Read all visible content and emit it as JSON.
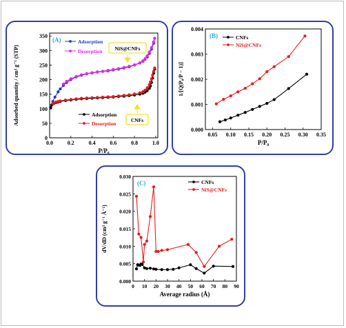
{
  "colors": {
    "frame": "#b9bcc2",
    "panel_border": "#2f3fa6",
    "panel_label": "#2aa8d8",
    "adsorption_ns": "#2233dd",
    "desorption_ns": "#ee22ee",
    "cnf": "#000000",
    "nis": "#e51c1c",
    "callout": "#f2e030"
  },
  "chart_data": [
    {
      "id": "A",
      "type": "line",
      "panel_label": "(A)",
      "xlabel": "P/P₀",
      "ylabel": "Adsorbed quantity / cm³ g⁻¹ (STP)",
      "xlim": [
        0.0,
        1.02
      ],
      "ylim": [
        0,
        360
      ],
      "xticks": [
        0.0,
        0.2,
        0.4,
        0.6,
        0.8,
        1.0
      ],
      "xtick_labels": [
        "0.0",
        "0.2",
        "0.4",
        "0.6",
        "0.8",
        "1.0"
      ],
      "yticks": [
        0,
        50,
        100,
        150,
        200,
        250,
        300,
        350
      ],
      "ytick_labels": [
        "0",
        "50",
        "100",
        "150",
        "200",
        "250",
        "300",
        "350"
      ],
      "callouts": [
        "NiS@CNFs",
        "CNFs"
      ],
      "legends": [
        {
          "position": "top-left",
          "entries": [
            "Adsorption",
            "Desorption"
          ]
        },
        {
          "position": "bottom-center",
          "entries": [
            "Adsorption",
            "Desorption"
          ]
        }
      ],
      "series": [
        {
          "name": "Adsorption",
          "color": "#2233dd",
          "x": [
            0.01,
            0.03,
            0.05,
            0.08,
            0.1,
            0.13,
            0.16,
            0.2,
            0.25,
            0.3,
            0.35,
            0.4,
            0.45,
            0.5,
            0.55,
            0.6,
            0.65,
            0.7,
            0.75,
            0.8,
            0.85,
            0.88,
            0.9,
            0.92,
            0.94,
            0.96,
            0.98,
            0.99
          ],
          "y": [
            102,
            125,
            140,
            158,
            168,
            180,
            190,
            200,
            209,
            215,
            220,
            223,
            226,
            228,
            230,
            233,
            236,
            240,
            244,
            250,
            257,
            263,
            270,
            278,
            290,
            305,
            325,
            342
          ]
        },
        {
          "name": "Desorption",
          "color": "#ee22ee",
          "x": [
            0.99,
            0.98,
            0.96,
            0.94,
            0.92,
            0.9,
            0.88,
            0.85,
            0.8,
            0.75,
            0.7,
            0.65,
            0.6,
            0.55,
            0.5,
            0.45,
            0.4,
            0.35,
            0.3,
            0.25,
            0.2,
            0.16,
            0.13
          ],
          "y": [
            342,
            330,
            310,
            295,
            282,
            272,
            265,
            258,
            251,
            246,
            242,
            238,
            235,
            232,
            229,
            227,
            224,
            221,
            217,
            211,
            203,
            194,
            185
          ]
        },
        {
          "name": "Adsorption",
          "color": "#000000",
          "x": [
            0.01,
            0.02,
            0.04,
            0.06,
            0.08,
            0.1,
            0.15,
            0.2,
            0.25,
            0.3,
            0.35,
            0.4,
            0.45,
            0.5,
            0.55,
            0.6,
            0.65,
            0.7,
            0.75,
            0.8,
            0.85,
            0.88,
            0.9,
            0.92,
            0.94,
            0.95,
            0.96,
            0.97,
            0.98,
            0.99
          ],
          "y": [
            104,
            113,
            118,
            121,
            123,
            125,
            128,
            130,
            132,
            134,
            135,
            136,
            137,
            138,
            139,
            140,
            142,
            143,
            145,
            147,
            150,
            153,
            157,
            162,
            170,
            178,
            190,
            205,
            222,
            236
          ]
        },
        {
          "name": "Desorption",
          "color": "#e51c1c",
          "x": [
            0.99,
            0.98,
            0.97,
            0.96,
            0.95,
            0.94,
            0.92,
            0.9,
            0.88,
            0.85,
            0.8,
            0.75,
            0.7,
            0.65,
            0.6,
            0.55,
            0.5,
            0.45,
            0.4,
            0.35,
            0.3,
            0.25,
            0.2,
            0.15,
            0.1,
            0.08,
            0.06,
            0.04,
            0.03
          ],
          "y": [
            240,
            228,
            215,
            203,
            192,
            183,
            172,
            164,
            159,
            155,
            151,
            148,
            146,
            144,
            142,
            141,
            140,
            139,
            138,
            137,
            136,
            134,
            132,
            130,
            127,
            125,
            123,
            120,
            118
          ]
        }
      ]
    },
    {
      "id": "B",
      "type": "line",
      "panel_label": "(B)",
      "xlabel": "P/P₀",
      "ylabel": "1/[Q(P₀/P − 1)]",
      "xlim": [
        0.03,
        0.35
      ],
      "ylim": [
        0.0,
        0.004
      ],
      "xticks": [
        0.05,
        0.1,
        0.15,
        0.2,
        0.25,
        0.3,
        0.35
      ],
      "xtick_labels": [
        "0.05",
        "0.10",
        "0.15",
        "0.20",
        "0.25",
        "0.30",
        "0.35"
      ],
      "yticks": [
        0.0,
        0.001,
        0.002,
        0.003,
        0.004
      ],
      "ytick_labels": [
        "0.000",
        "0.001",
        "0.002",
        "0.003",
        "0.004"
      ],
      "legend": {
        "position": "top-left"
      },
      "series": [
        {
          "name": "CNFs",
          "color": "#000000",
          "x": [
            0.07,
            0.085,
            0.1,
            0.12,
            0.14,
            0.16,
            0.18,
            0.2,
            0.22,
            0.26,
            0.31
          ],
          "y": [
            0.00031,
            0.00038,
            0.00046,
            0.00057,
            0.00068,
            0.0008,
            0.00092,
            0.00104,
            0.00119,
            0.00163,
            0.0022
          ]
        },
        {
          "name": "NiS@CNFs",
          "color": "#e51c1c",
          "x": [
            0.06,
            0.08,
            0.1,
            0.12,
            0.14,
            0.16,
            0.18,
            0.2,
            0.22,
            0.26,
            0.305
          ],
          "y": [
            0.00102,
            0.0012,
            0.00134,
            0.0015,
            0.00164,
            0.00182,
            0.00202,
            0.0023,
            0.0025,
            0.0029,
            0.00372
          ]
        }
      ]
    },
    {
      "id": "C",
      "type": "line",
      "panel_label": "(C)",
      "xlabel": "Average radius (Å)",
      "ylabel": "dV/dD (cm³ g⁻¹ Å⁻¹)",
      "xlim": [
        0,
        90
      ],
      "ylim": [
        0.0,
        0.03
      ],
      "xticks": [
        0,
        10,
        20,
        30,
        40,
        50,
        60,
        70,
        80,
        90
      ],
      "xtick_labels": [
        "0",
        "10",
        "20",
        "30",
        "40",
        "50",
        "60",
        "70",
        "80",
        "90"
      ],
      "yticks": [
        0.0,
        0.005,
        0.01,
        0.015,
        0.02,
        0.025,
        0.03
      ],
      "ytick_labels": [
        "0.000",
        "0.005",
        "0.010",
        "0.015",
        "0.020",
        "0.025",
        "0.030"
      ],
      "legend": {
        "position": "top-right"
      },
      "series": [
        {
          "name": "CNFs",
          "color": "#000000",
          "x": [
            3,
            4,
            5,
            6,
            7,
            8,
            10,
            12,
            15,
            18,
            20,
            25,
            30,
            35,
            40,
            50,
            55,
            62,
            70,
            87
          ],
          "y": [
            0.0035,
            0.0047,
            0.0046,
            0.0045,
            0.0049,
            0.0048,
            0.0038,
            0.0036,
            0.0037,
            0.0035,
            0.0034,
            0.0033,
            0.0033,
            0.0034,
            0.0038,
            0.0047,
            0.0036,
            0.0023,
            0.0043,
            0.0042
          ]
        },
        {
          "name": "NiS@CNFs",
          "color": "#e51c1c",
          "x": [
            3,
            5,
            7,
            9,
            10,
            12,
            15,
            18,
            20,
            22,
            25,
            30,
            48,
            55,
            62,
            75,
            86
          ],
          "y": [
            0.0243,
            0.0135,
            0.0125,
            0.0055,
            0.0105,
            0.0115,
            0.0185,
            0.027,
            0.0085,
            0.0085,
            0.0088,
            0.009,
            0.0105,
            0.0082,
            0.0042,
            0.01,
            0.012
          ]
        }
      ]
    }
  ]
}
